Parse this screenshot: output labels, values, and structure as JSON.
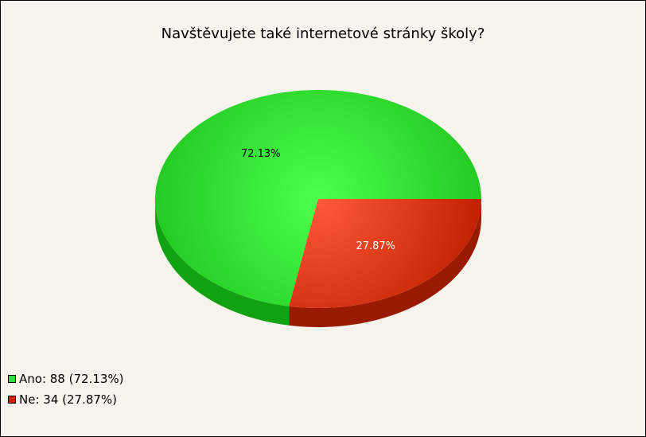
{
  "chart_data": {
    "type": "pie",
    "title": "Navštěvujete také internetové stránky školy?",
    "slices": [
      {
        "label": "Ano",
        "value": 88,
        "percent": 72.13,
        "percent_label": "72.13%",
        "legend": "Ano: 88 (72.13%)",
        "color": "#33dd33"
      },
      {
        "label": "Ne",
        "value": 34,
        "percent": 27.87,
        "percent_label": "27.87%",
        "legend": "Ne: 34 (27.87%)",
        "color": "#cc2200"
      }
    ],
    "legend_position": "bottom-left"
  }
}
